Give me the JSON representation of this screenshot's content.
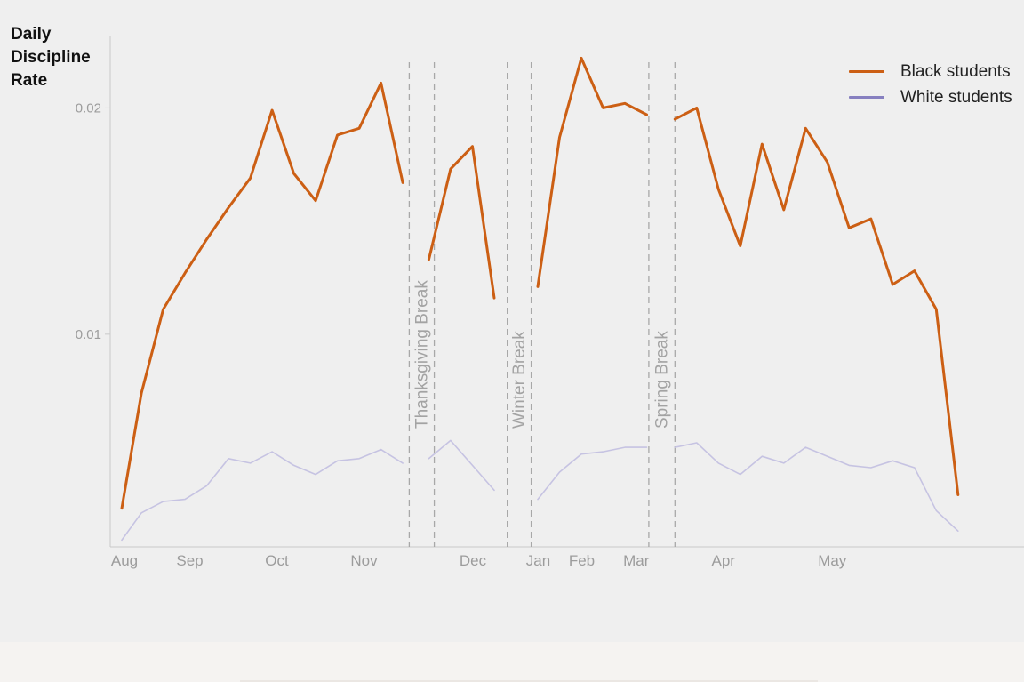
{
  "colors": {
    "black_series": "#cc5f14",
    "white_series": "#c6c3e2",
    "white_legend": "#8780c0",
    "axis": "#c9c9c9",
    "tick_label": "#9c9c9c",
    "break_line": "#a8a8a8",
    "break_label": "#a3a3a3"
  },
  "chart_data": {
    "type": "line",
    "ylabel": "Daily\nDiscipline\nRate",
    "y_ticks": [
      {
        "value": 0.01,
        "label": "0.01"
      },
      {
        "value": 0.02,
        "label": "0.02"
      }
    ],
    "ylim": [
      0.0006,
      0.0232
    ],
    "xlim": [
      0,
      38.8
    ],
    "x_ticks": [
      {
        "x": 0,
        "label": "Aug"
      },
      {
        "x": 3,
        "label": "Sep"
      },
      {
        "x": 7,
        "label": "Oct"
      },
      {
        "x": 11,
        "label": "Nov"
      },
      {
        "x": 16,
        "label": "Dec"
      },
      {
        "x": 19,
        "label": "Jan"
      },
      {
        "x": 21,
        "label": "Feb"
      },
      {
        "x": 23.5,
        "label": "Mar"
      },
      {
        "x": 27.5,
        "label": "Apr"
      },
      {
        "x": 32.5,
        "label": "May"
      }
    ],
    "breaks": [
      {
        "label": "Thanksgiving Break",
        "start": 13.2,
        "end": 14.35
      },
      {
        "label": "Winter Break",
        "start": 17.7,
        "end": 18.8
      },
      {
        "label": "Spring Break",
        "start": 24.2,
        "end": 25.4
      }
    ],
    "legend": {
      "position": "top-right"
    },
    "series": [
      {
        "name": "Black students",
        "segments": [
          [
            [
              0,
              0.0023
            ],
            [
              0.9,
              0.0074
            ],
            [
              1.9,
              0.0111
            ],
            [
              2.9,
              0.0127
            ],
            [
              3.9,
              0.0142
            ],
            [
              4.9,
              0.0156
            ],
            [
              5.9,
              0.0169
            ],
            [
              6.9,
              0.0199
            ],
            [
              7.9,
              0.0171
            ],
            [
              8.9,
              0.0159
            ],
            [
              9.9,
              0.0188
            ],
            [
              10.9,
              0.0191
            ],
            [
              11.9,
              0.0211
            ],
            [
              12.9,
              0.0167
            ]
          ],
          [
            [
              14.1,
              0.0133
            ],
            [
              15.1,
              0.0173
            ],
            [
              16.1,
              0.0183
            ],
            [
              17.1,
              0.0116
            ]
          ],
          [
            [
              19.1,
              0.0121
            ],
            [
              20.1,
              0.0187
            ],
            [
              21.1,
              0.0222
            ],
            [
              22.1,
              0.02
            ],
            [
              23.1,
              0.0202
            ],
            [
              24.1,
              0.0197
            ]
          ],
          [
            [
              25.4,
              0.0195
            ],
            [
              26.4,
              0.02
            ],
            [
              27.4,
              0.0164
            ],
            [
              28.4,
              0.0139
            ],
            [
              29.4,
              0.0184
            ],
            [
              30.4,
              0.0155
            ],
            [
              31.4,
              0.0191
            ],
            [
              32.4,
              0.0176
            ],
            [
              33.4,
              0.0147
            ],
            [
              34.4,
              0.0151
            ],
            [
              35.4,
              0.0122
            ],
            [
              36.4,
              0.0128
            ],
            [
              37.4,
              0.0111
            ],
            [
              38.4,
              0.0029
            ]
          ]
        ]
      },
      {
        "name": "White students",
        "segments": [
          [
            [
              0,
              0.0009
            ],
            [
              0.9,
              0.0021
            ],
            [
              1.9,
              0.0026
            ],
            [
              2.9,
              0.0027
            ],
            [
              3.9,
              0.0033
            ],
            [
              4.9,
              0.0045
            ],
            [
              5.9,
              0.0043
            ],
            [
              6.9,
              0.0048
            ],
            [
              7.9,
              0.0042
            ],
            [
              8.9,
              0.0038
            ],
            [
              9.9,
              0.0044
            ],
            [
              10.9,
              0.0045
            ],
            [
              11.9,
              0.0049
            ],
            [
              12.9,
              0.0043
            ]
          ],
          [
            [
              14.1,
              0.0045
            ],
            [
              15.1,
              0.0053
            ],
            [
              16.1,
              0.0042
            ],
            [
              17.1,
              0.0031
            ]
          ],
          [
            [
              19.1,
              0.0027
            ],
            [
              20.1,
              0.0039
            ],
            [
              21.1,
              0.0047
            ],
            [
              22.1,
              0.0048
            ],
            [
              23.1,
              0.005
            ],
            [
              24.1,
              0.005
            ]
          ],
          [
            [
              25.4,
              0.005
            ],
            [
              26.4,
              0.0052
            ],
            [
              27.4,
              0.0043
            ],
            [
              28.4,
              0.0038
            ],
            [
              29.4,
              0.0046
            ],
            [
              30.4,
              0.0043
            ],
            [
              31.4,
              0.005
            ],
            [
              32.4,
              0.0046
            ],
            [
              33.4,
              0.0042
            ],
            [
              34.4,
              0.0041
            ],
            [
              35.4,
              0.0044
            ],
            [
              36.4,
              0.0041
            ],
            [
              37.4,
              0.0022
            ],
            [
              38.4,
              0.0013
            ]
          ]
        ]
      }
    ]
  }
}
